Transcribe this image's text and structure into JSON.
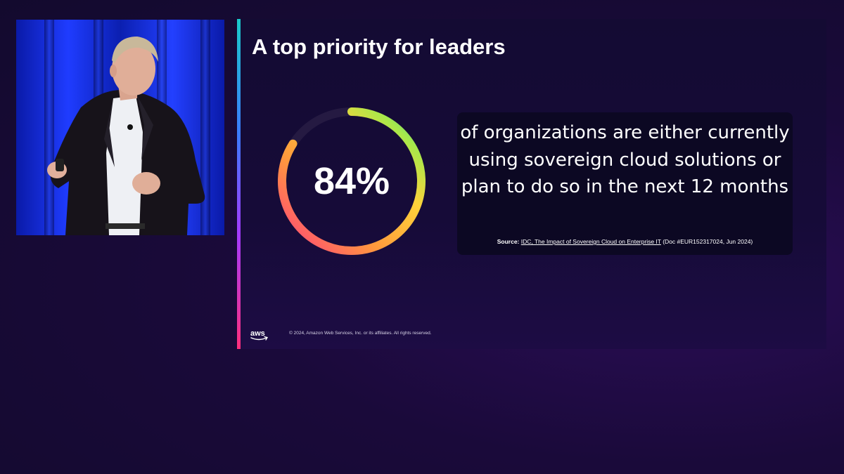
{
  "slide": {
    "title": "A top priority for leaders",
    "stat": {
      "value_label": "84%",
      "ring_fill_fraction": 0.84,
      "description": "of organizations are either currently using sovereign cloud solutions or plan to do so in the next 12 months",
      "source": {
        "prefix": "Source:",
        "link_text": "IDC, The Impact of Sovereign Cloud on Enterprise IT",
        "suffix": " (Doc #EUR152317024, Jun 2024)"
      }
    },
    "footer": {
      "logo_text": "aws",
      "copyright": "© 2024, Amazon Web Services, Inc. or its affiliates. All rights reserved."
    }
  },
  "colors": {
    "background": "#1a0a3a",
    "slide_background": "#150b35",
    "card_background": "#0c0823",
    "ring_gradient": [
      "#ff3d7f",
      "#ff9a3c",
      "#ffd23a",
      "#a8e84a",
      "#3ddc97"
    ],
    "accent_bar": [
      "#19c9c9",
      "#3b7bff",
      "#a33bff",
      "#ff2f7a"
    ]
  }
}
